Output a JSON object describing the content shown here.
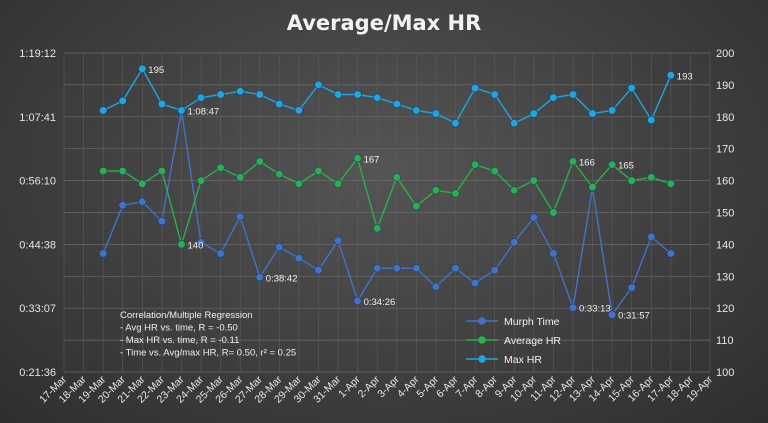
{
  "chart_data": {
    "type": "line",
    "title": "Average/Max HR",
    "grid": true,
    "legend_position": "bottom-right",
    "categories": [
      "17-Mar",
      "18-Mar",
      "19-Mar",
      "20-Mar",
      "21-Mar",
      "22-Mar",
      "23-Mar",
      "24-Mar",
      "25-Mar",
      "26-Mar",
      "27-Mar",
      "28-Mar",
      "29-Mar",
      "30-Mar",
      "31-Mar",
      "1-Apr",
      "2-Apr",
      "3-Apr",
      "4-Apr",
      "5-Apr",
      "6-Apr",
      "7-Apr",
      "8-Apr",
      "9-Apr",
      "10-Apr",
      "11-Apr",
      "12-Apr",
      "13-Apr",
      "14-Apr",
      "15-Apr",
      "16-Apr",
      "17-Apr",
      "18-Apr",
      "19-Apr"
    ],
    "left_axis": {
      "ticks": [
        "0:21:36",
        "0:33:07",
        "0:44:38",
        "0:56:10",
        "1:07:41",
        "1:19:12"
      ],
      "min_seconds": 1296,
      "max_seconds": 4752
    },
    "right_axis": {
      "ticks": [
        "100",
        "110",
        "120",
        "130",
        "140",
        "150",
        "160",
        "170",
        "180",
        "190",
        "200"
      ],
      "min": 100,
      "max": 200
    },
    "series": [
      {
        "name": "Murph Time",
        "axis": "left",
        "color": "#4472c4",
        "values": [
          null,
          null,
          "0:43:00",
          "0:51:42",
          "0:52:20",
          "0:48:50",
          "1:08:47",
          "0:45:00",
          "0:43:00",
          "0:49:40",
          "0:38:42",
          "0:44:10",
          "0:42:10",
          "0:40:00",
          "0:45:20",
          "0:34:26",
          "0:40:20",
          "0:40:20",
          "0:40:20",
          "0:37:00",
          "0:40:20",
          "0:37:40",
          "0:40:00",
          "0:45:00",
          "0:49:30",
          "0:43:00",
          "0:33:13",
          "0:54:50",
          "0:31:57",
          "0:36:50",
          "0:46:00",
          "0:43:00",
          null,
          null
        ],
        "labels": {
          "6": "1:08:47",
          "10": "0:38:42",
          "15": "0:34:26",
          "26": "0:33:13",
          "28": "0:31:57"
        }
      },
      {
        "name": "Average HR",
        "axis": "right",
        "color": "#2bb04a",
        "values": [
          null,
          null,
          163,
          163,
          159,
          163,
          140,
          160,
          164,
          161,
          166,
          162,
          159,
          163,
          159,
          167,
          145,
          161,
          152,
          157,
          156,
          165,
          163,
          157,
          160,
          150,
          166,
          158,
          165,
          160,
          161,
          159,
          null,
          null
        ],
        "labels": {
          "6": "140",
          "15": "167",
          "26": "166",
          "28": "165"
        }
      },
      {
        "name": "Max HR",
        "axis": "right",
        "color": "#1fa6e0",
        "values": [
          null,
          null,
          182,
          185,
          195,
          184,
          182,
          186,
          187,
          188,
          187,
          184,
          182,
          190,
          187,
          187,
          186,
          184,
          182,
          181,
          178,
          189,
          187,
          178,
          181,
          186,
          187,
          181,
          182,
          189,
          179,
          193,
          null,
          null
        ],
        "labels": {
          "4": "195",
          "31": "193"
        }
      }
    ],
    "annotations": [
      "Correlation/Multiple Regression",
      "- Avg HR vs. time, R = -0.50",
      "- Max HR vs. time, R = -0.11",
      "- Time vs. Avg/max HR, R= 0.50, r² = 0.25"
    ]
  }
}
